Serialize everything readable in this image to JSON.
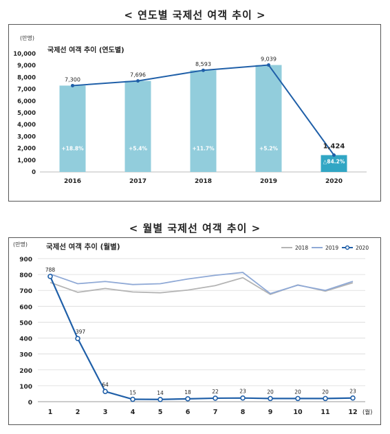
{
  "charts": [
    {
      "heading": "< 연도별 국제선 여객 추이 >",
      "chart_data": {
        "type": "bar",
        "title": "국제선 여객 추이 (연도별)",
        "unit": "(만명)",
        "categories": [
          "2016",
          "2017",
          "2018",
          "2019",
          "2020"
        ],
        "values": [
          7300,
          7696,
          8593,
          9039,
          1424
        ],
        "value_labels": [
          "7,300",
          "7,696",
          "8,593",
          "9,039",
          "1,424"
        ],
        "growth_labels": [
          "+18.8%",
          "+5.4%",
          "+11.7%",
          "+5.2%",
          "△84.2%"
        ],
        "yticks": [
          "0",
          "1,000",
          "2,000",
          "3,000",
          "4,000",
          "5,000",
          "6,000",
          "7,000",
          "8,000",
          "9,000",
          "10,000"
        ],
        "ylim": [
          0,
          10000
        ],
        "bar_color": "#92cddc",
        "last_bar_color": "#31a6c4",
        "line_color": "#1f5fa8"
      }
    },
    {
      "heading": "< 월별 국제선 여객 추이 >",
      "chart_data": {
        "type": "line",
        "title": "국제선 여객 추이 (월별)",
        "unit": "(만명)",
        "x_unit": "(월)",
        "categories": [
          "1",
          "2",
          "3",
          "4",
          "5",
          "6",
          "7",
          "8",
          "9",
          "10",
          "11",
          "12"
        ],
        "ylim": [
          0,
          900
        ],
        "yticks": [
          "0",
          "100",
          "200",
          "300",
          "400",
          "500",
          "600",
          "700",
          "800",
          "900"
        ],
        "legend_position": "top-right",
        "series": [
          {
            "name": "2018",
            "color": "#b4b4b4",
            "values": [
              750,
              688,
              712,
              690,
              685,
              702,
              730,
              780,
              675,
              735,
              695,
              748
            ]
          },
          {
            "name": "2019",
            "color": "#8fa9d6",
            "values": [
              803,
              742,
              756,
              737,
              742,
              772,
              795,
              813,
              680,
              733,
              700,
              757
            ]
          },
          {
            "name": "2020",
            "color": "#1f5fa8",
            "values": [
              788,
              397,
              64,
              15,
              14,
              18,
              22,
              23,
              20,
              20,
              20,
              23
            ],
            "labeled": true
          }
        ]
      }
    }
  ]
}
